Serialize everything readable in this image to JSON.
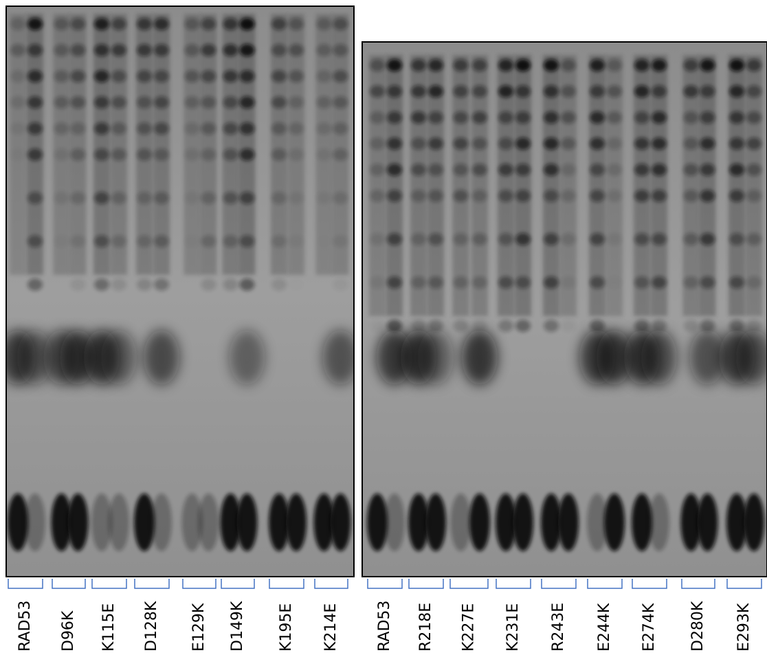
{
  "panels": [
    {
      "lanes": [
        "RAD53",
        "D96K",
        "K115E",
        "D128K",
        "E129K",
        "D149K",
        "K195E",
        "K214E"
      ]
    },
    {
      "lanes": [
        "RAD53",
        "R218E",
        "K227E",
        "K231E",
        "R243E",
        "E244K",
        "E274K",
        "D280K",
        "E293K"
      ]
    }
  ]
}
